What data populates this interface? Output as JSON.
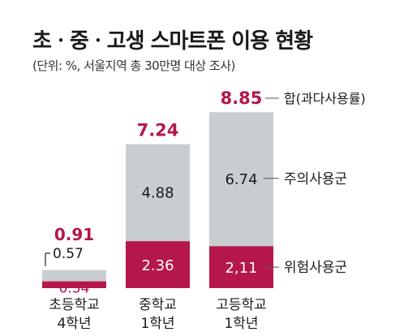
{
  "title": "초ㆍ중ㆍ고생 스마트폰 이용 현황",
  "subtitle": "(단위: %, 서울지역 총 30만명 대상 조사)",
  "colors": {
    "risk": "#b5174a",
    "caution": "#c8cdd2",
    "total_label": "#b5174a",
    "text": "#1a1a1a",
    "bar_label_light": "#ffffff"
  },
  "chart_data": {
    "type": "bar",
    "stacked": true,
    "categories": [
      [
        "초등학교",
        "4학년"
      ],
      [
        "중학교",
        "1학년"
      ],
      [
        "고등학교",
        "1학년"
      ]
    ],
    "series": [
      {
        "name": "위험사용군",
        "values": [
          0.34,
          2.36,
          2.11
        ],
        "color": "#b5174a"
      },
      {
        "name": "주의사용군",
        "values": [
          0.57,
          4.88,
          6.74
        ],
        "color": "#c8cdd2"
      }
    ],
    "totals": [
      0.91,
      7.24,
      8.85
    ],
    "value_labels": {
      "risk": [
        "0.34",
        "2.36",
        "2,11"
      ],
      "caution": [
        "0.57",
        "4.88",
        "6.74"
      ],
      "totals": [
        "0.91",
        "7.24",
        "8.85"
      ]
    },
    "legend": {
      "total": "합(과다사용률)",
      "caution": "주의사용군",
      "risk": "위험사용군"
    },
    "ylim": [
      0,
      9.5
    ],
    "grid": false
  }
}
